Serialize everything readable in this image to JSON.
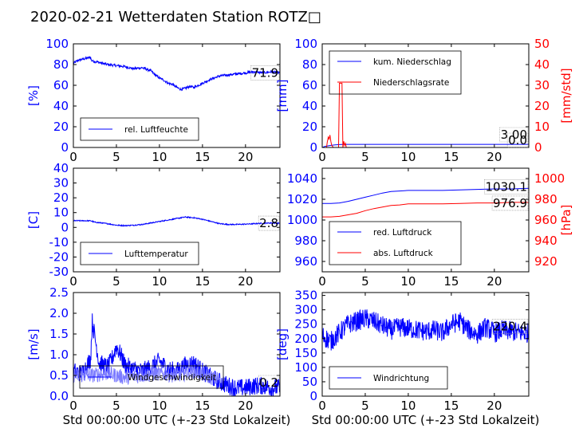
{
  "title": "2020-02-21 Wetterdaten Station ROTZ□",
  "colors": {
    "left_axis": "#0000ff",
    "right_axis": "#ff0000",
    "line_blue": "#0000ff",
    "line_red": "#ff0000",
    "line_lightblue": "#7b7bff"
  },
  "chart_data": [
    {
      "type": "line",
      "panel": "top-left",
      "ylabel": "[%]",
      "xlim": [
        0,
        24
      ],
      "ylim": [
        0,
        100
      ],
      "xticks": [
        0,
        5,
        10,
        15,
        20
      ],
      "yticks": [
        0,
        20,
        40,
        60,
        80,
        100
      ],
      "legend": {
        "entries": [
          "rel. Luftfeuchte"
        ],
        "placement": "lower-left"
      },
      "annotation": "71.9",
      "series": [
        {
          "name": "rel. Luftfeuchte",
          "color": "#0000ff",
          "noise": 1.2,
          "x": [
            0,
            0.5,
            1,
            1.5,
            2,
            2.1,
            2.5,
            3,
            4,
            5,
            6,
            7,
            8,
            9,
            9.5,
            10,
            10.5,
            11,
            11.5,
            12,
            12.5,
            13,
            13.5,
            14,
            15,
            16,
            17,
            18,
            19,
            20,
            21,
            22,
            23,
            24
          ],
          "y": [
            81,
            84,
            85,
            86,
            87,
            84,
            83,
            82,
            80,
            79,
            78,
            76,
            77,
            74,
            70,
            67,
            65,
            62,
            61,
            58,
            56,
            57,
            59,
            58,
            62,
            66,
            69,
            70,
            71,
            72,
            73,
            72,
            73,
            72
          ]
        }
      ]
    },
    {
      "type": "line",
      "panel": "top-right",
      "ylabel": "[mm]",
      "ylabel_right": "[mm/std]",
      "xlim": [
        0,
        24
      ],
      "ylim": [
        0,
        100
      ],
      "ylim_right": [
        0,
        50
      ],
      "xticks": [
        0,
        5,
        10,
        15,
        20
      ],
      "yticks": [
        0,
        20,
        40,
        60,
        80,
        100
      ],
      "yticks_right": [
        0,
        10,
        20,
        30,
        40,
        50
      ],
      "legend": {
        "entries": [
          "kum. Niederschlag",
          "Niederschlagsrate"
        ],
        "placement": "upper-left"
      },
      "annotations": [
        "3.00",
        "0.0"
      ],
      "series": [
        {
          "name": "kum. Niederschlag",
          "color": "#0000ff",
          "axis": "left",
          "x": [
            0,
            0.3,
            0.6,
            1,
            1.5,
            2,
            2.5,
            3,
            24
          ],
          "y": [
            0,
            1,
            1.5,
            2,
            2.5,
            2.8,
            3,
            3,
            3
          ]
        },
        {
          "name": "Niederschlagsrate",
          "color": "#ff0000",
          "axis": "right",
          "x": [
            0,
            0.5,
            0.6,
            0.7,
            0.8,
            0.9,
            1.0,
            1.1,
            1.3,
            1.6,
            1.9,
            2.0,
            2.1,
            2.2,
            2.3,
            2.4,
            2.5,
            2.6,
            2.7,
            2.8,
            3.0,
            24
          ],
          "y": [
            0,
            0,
            3,
            5,
            4,
            6,
            3,
            1,
            0,
            0,
            0,
            31,
            31,
            31,
            31,
            0,
            3,
            1,
            2,
            0,
            0,
            0
          ]
        }
      ]
    },
    {
      "type": "line",
      "panel": "mid-left",
      "ylabel": "[C]",
      "xlim": [
        0,
        24
      ],
      "ylim": [
        -30,
        40
      ],
      "xticks": [
        0,
        5,
        10,
        15,
        20
      ],
      "yticks": [
        -30,
        -20,
        -10,
        0,
        10,
        20,
        30,
        40
      ],
      "legend": {
        "entries": [
          "Lufttemperatur"
        ],
        "placement": "lower-left"
      },
      "annotation": "2.8",
      "series": [
        {
          "name": "Lufttemperatur",
          "color": "#0000ff",
          "noise": 0.35,
          "x": [
            0,
            1,
            2,
            2.5,
            3,
            4,
            5,
            6,
            7,
            8,
            9,
            10,
            11,
            12,
            13,
            14,
            15,
            16,
            17,
            18,
            19,
            20,
            21,
            22,
            23,
            24
          ],
          "y": [
            4.5,
            4.5,
            4.5,
            3.5,
            3.2,
            2.5,
            1.5,
            1.2,
            1.5,
            2,
            3,
            4,
            5,
            6,
            7,
            6.5,
            5.5,
            4,
            2.5,
            2,
            2,
            2.2,
            2.5,
            2.8,
            3,
            2.8
          ]
        }
      ]
    },
    {
      "type": "line",
      "panel": "mid-right",
      "ylabel_right": "[hPa]",
      "xlim": [
        0,
        24
      ],
      "ylim": [
        950,
        1050
      ],
      "ylim_right": [
        910,
        1010
      ],
      "xticks": [
        0,
        5,
        10,
        15,
        20
      ],
      "yticks": [
        960,
        980,
        1000,
        1020,
        1040
      ],
      "yticks_right": [
        920,
        940,
        960,
        980,
        1000
      ],
      "legend": {
        "entries": [
          "red. Luftdruck",
          "abs. Luftdruck"
        ],
        "placement": "lower-left"
      },
      "annotations": [
        "1030.1",
        "976.9"
      ],
      "series": [
        {
          "name": "red. Luftdruck",
          "color": "#0000ff",
          "axis": "left",
          "x": [
            0,
            1,
            2,
            3,
            4,
            5,
            6,
            7,
            8,
            9,
            10,
            12,
            14,
            16,
            18,
            20,
            22,
            24
          ],
          "y": [
            1016,
            1016,
            1016.5,
            1018,
            1020,
            1022,
            1024,
            1026,
            1027.5,
            1028,
            1028.5,
            1028.5,
            1028.5,
            1029,
            1029.5,
            1030,
            1030,
            1030.5
          ]
        },
        {
          "name": "abs. Luftdruck",
          "color": "#ff0000",
          "axis": "right",
          "x": [
            0,
            1,
            2,
            3,
            4,
            5,
            6,
            7,
            8,
            9,
            10,
            12,
            14,
            16,
            18,
            20,
            22,
            24
          ],
          "y": [
            963,
            963,
            963.5,
            965,
            966.5,
            969,
            971,
            972.5,
            974,
            974.5,
            975.5,
            975.5,
            975.5,
            976,
            976.5,
            976.5,
            977,
            977
          ]
        }
      ]
    },
    {
      "type": "line",
      "panel": "bottom-left",
      "ylabel": "[m/s]",
      "xlabel": "Std 00:00:00 UTC (+-23 Std Lokalzeit)",
      "xlim": [
        0,
        24
      ],
      "ylim": [
        0,
        2.5
      ],
      "xticks": [
        0,
        5,
        10,
        15,
        20
      ],
      "yticks": [
        0.0,
        0.5,
        1.0,
        1.5,
        2.0,
        2.5
      ],
      "legend": {
        "entries": [
          "Windgeschwindigkeit"
        ],
        "placement": "lower-center"
      },
      "annotation": "0.2",
      "series": [
        {
          "name": "Windgeschwindigkeit",
          "color": "#0000ff",
          "noise": 0.22,
          "x": [
            0,
            1,
            2,
            2.2,
            3,
            4,
            4.5,
            5,
            5.5,
            6,
            7,
            8,
            9,
            10,
            11,
            12,
            13,
            14,
            15,
            16,
            17,
            18,
            19,
            20,
            21,
            22,
            23,
            24
          ],
          "y": [
            0.6,
            0.55,
            0.9,
            1.8,
            0.8,
            0.7,
            0.9,
            1.2,
            1.0,
            0.75,
            0.65,
            0.6,
            0.7,
            0.85,
            0.65,
            0.6,
            0.75,
            0.8,
            0.6,
            0.45,
            0.35,
            0.25,
            0.2,
            0.2,
            0.25,
            0.25,
            0.2,
            0.2
          ]
        },
        {
          "name": "",
          "color": "#7b7bff",
          "noise": 0.18,
          "x": [
            0,
            2,
            4,
            6,
            8,
            10,
            12,
            14,
            16,
            17
          ],
          "y": [
            0.5,
            0.5,
            0.55,
            0.45,
            0.5,
            0.55,
            0.5,
            0.6,
            0.45,
            0.4
          ]
        }
      ]
    },
    {
      "type": "line",
      "panel": "bottom-right",
      "ylabel": "[deg]",
      "xlabel": "Std 00:00:00 UTC (+-23 Std Lokalzeit)",
      "xlim": [
        0,
        24
      ],
      "ylim": [
        0,
        360
      ],
      "xticks": [
        0,
        5,
        10,
        15,
        20
      ],
      "yticks": [
        0,
        50,
        100,
        150,
        200,
        250,
        300,
        350
      ],
      "legend": {
        "entries": [
          "Windrichtung"
        ],
        "placement": "lower-left"
      },
      "annotation": "220.4",
      "series": [
        {
          "name": "Windrichtung",
          "color": "#0000ff",
          "noise": 35,
          "x": [
            0,
            1,
            2,
            3,
            4,
            5,
            6,
            7,
            8,
            9,
            10,
            11,
            12,
            13,
            14,
            15,
            16,
            17,
            18,
            19,
            20,
            21,
            22,
            23,
            24
          ],
          "y": [
            210,
            190,
            220,
            250,
            260,
            270,
            260,
            245,
            230,
            240,
            235,
            230,
            225,
            230,
            220,
            250,
            260,
            230,
            215,
            240,
            220,
            230,
            225,
            220,
            220
          ]
        }
      ]
    }
  ]
}
